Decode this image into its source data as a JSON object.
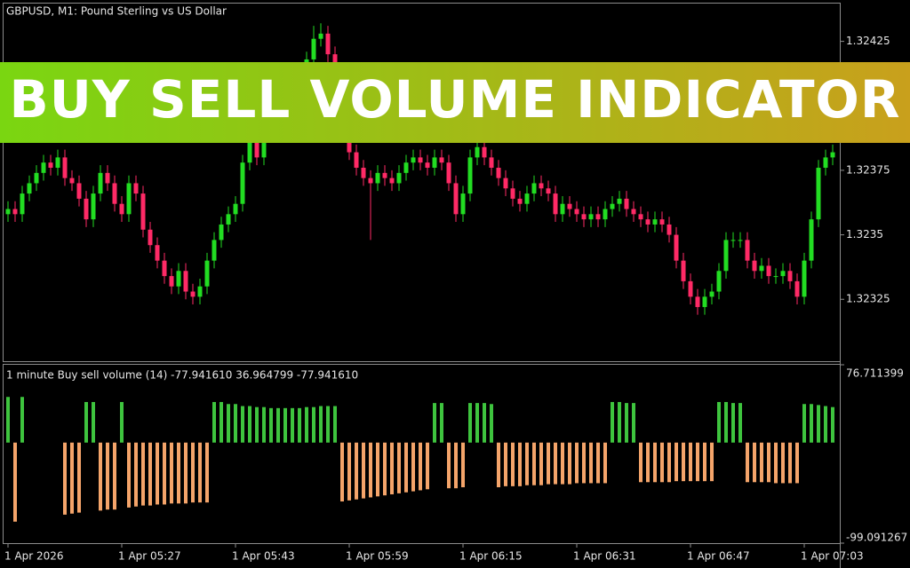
{
  "banner": {
    "text": "BUY SELL VOLUME INDICATOR"
  },
  "chart_data": [
    {
      "type": "candlestick",
      "title": "GBPUSD, M1:  Pound Sterling vs US Dollar",
      "up_color": "#22dd22",
      "down_color": "#ff2a66",
      "ylim": [
        1.32301,
        1.3244
      ],
      "yticks": [
        1.32325,
        1.3235,
        1.32375,
        1.32425
      ],
      "categories": [
        "1 Apr 2026",
        null,
        null,
        null,
        null,
        null,
        null,
        null,
        null,
        null,
        null,
        null,
        null,
        null,
        null,
        null,
        "1 Apr 05:27",
        null,
        null,
        null,
        null,
        null,
        null,
        null,
        null,
        null,
        null,
        null,
        null,
        null,
        null,
        null,
        "1 Apr 05:43",
        null,
        null,
        null,
        null,
        null,
        null,
        null,
        null,
        null,
        null,
        null,
        null,
        null,
        null,
        null,
        "1 Apr 05:59",
        null,
        null,
        null,
        null,
        null,
        null,
        null,
        null,
        null,
        null,
        null,
        null,
        null,
        null,
        null,
        "1 Apr 06:15",
        null,
        null,
        null,
        null,
        null,
        null,
        null,
        null,
        null,
        null,
        null,
        null,
        null,
        null,
        null,
        "1 Apr 06:31",
        null,
        null,
        null,
        null,
        null,
        null,
        null,
        null,
        null,
        null,
        null,
        null,
        null,
        null,
        null,
        "1 Apr 06:47",
        null,
        null,
        null,
        null,
        null,
        null,
        null,
        null,
        null,
        null,
        null,
        null,
        null,
        null,
        null,
        "1 Apr 07:03",
        null,
        null,
        null,
        null
      ],
      "open": [
        1.32358,
        1.3236,
        1.32358,
        1.32366,
        1.3237,
        1.32374,
        1.32378,
        1.32376,
        1.3238,
        1.32372,
        1.3237,
        1.32364,
        1.32356,
        1.32366,
        1.32374,
        1.3237,
        1.32362,
        1.32358,
        1.3237,
        1.32366,
        1.32352,
        1.32346,
        1.3234,
        1.32334,
        1.3233,
        1.32336,
        1.32328,
        1.32326,
        1.3233,
        1.3234,
        1.32348,
        1.32354,
        1.32358,
        1.32362,
        1.32378,
        1.32386,
        1.3238,
        1.3239,
        1.32396,
        1.324,
        1.32404,
        1.32408,
        1.32412,
        1.32418,
        1.32426,
        1.32428,
        1.3242,
        1.32412,
        1.324,
        1.32382,
        1.32376,
        1.32372,
        1.3237,
        1.32374,
        1.32372,
        1.3237,
        1.32374,
        1.32378,
        1.3238,
        1.32378,
        1.32376,
        1.3238,
        1.32378,
        1.3237,
        1.32358,
        1.32366,
        1.3238,
        1.32384,
        1.3238,
        1.32376,
        1.32372,
        1.32368,
        1.32364,
        1.32362,
        1.32366,
        1.3237,
        1.32368,
        1.32366,
        1.32358,
        1.32362,
        1.3236,
        1.32358,
        1.32356,
        1.32358,
        1.32356,
        1.3236,
        1.32362,
        1.32364,
        1.3236,
        1.32358,
        1.32356,
        1.32354,
        1.32356,
        1.32354,
        1.3235,
        1.3234,
        1.32332,
        1.32326,
        1.32322,
        1.32326,
        1.32328,
        1.32336,
        1.32348,
        1.32348,
        1.32348,
        1.3234,
        1.32336,
        1.32338,
        1.32334,
        1.32334,
        1.32336,
        1.32332,
        1.32326,
        1.3234,
        1.32356,
        1.32376,
        1.3238
      ],
      "high": [
        1.32363,
        1.32363,
        1.32369,
        1.32373,
        1.32377,
        1.32381,
        1.32381,
        1.32383,
        1.32383,
        1.32375,
        1.32373,
        1.32367,
        1.32369,
        1.32377,
        1.32377,
        1.32373,
        1.32365,
        1.32373,
        1.32373,
        1.32369,
        1.32355,
        1.32349,
        1.32343,
        1.32337,
        1.32339,
        1.32339,
        1.32331,
        1.32333,
        1.32343,
        1.32351,
        1.32357,
        1.32361,
        1.32365,
        1.32381,
        1.32389,
        1.32389,
        1.32393,
        1.32399,
        1.32403,
        1.32407,
        1.32411,
        1.32415,
        1.32421,
        1.32431,
        1.32432,
        1.32431,
        1.32423,
        1.32415,
        1.32403,
        1.32385,
        1.32379,
        1.32375,
        1.32377,
        1.32377,
        1.32375,
        1.32377,
        1.32381,
        1.32383,
        1.32383,
        1.32381,
        1.32383,
        1.32383,
        1.32381,
        1.32373,
        1.32369,
        1.32383,
        1.32387,
        1.32387,
        1.32383,
        1.32379,
        1.32375,
        1.32371,
        1.32367,
        1.32369,
        1.32373,
        1.32373,
        1.32371,
        1.32369,
        1.32365,
        1.32365,
        1.32363,
        1.32361,
        1.32361,
        1.32361,
        1.32363,
        1.32365,
        1.32367,
        1.32367,
        1.32363,
        1.32361,
        1.32359,
        1.32359,
        1.32359,
        1.32357,
        1.32353,
        1.32343,
        1.32335,
        1.32329,
        1.32329,
        1.32331,
        1.32339,
        1.32351,
        1.32351,
        1.32351,
        1.32351,
        1.32343,
        1.32341,
        1.32341,
        1.32337,
        1.32339,
        1.32339,
        1.32335,
        1.32343,
        1.32359,
        1.32379,
        1.32383,
        1.32385
      ],
      "low": [
        1.32355,
        1.32355,
        1.32355,
        1.32363,
        1.32367,
        1.32371,
        1.32373,
        1.32373,
        1.32369,
        1.32367,
        1.32361,
        1.32353,
        1.32353,
        1.32363,
        1.32367,
        1.32359,
        1.32355,
        1.32355,
        1.32363,
        1.32349,
        1.32343,
        1.32337,
        1.32331,
        1.32327,
        1.32327,
        1.32325,
        1.32323,
        1.32323,
        1.32327,
        1.32337,
        1.32345,
        1.32351,
        1.32355,
        1.32359,
        1.32375,
        1.32377,
        1.32377,
        1.32387,
        1.32393,
        1.32397,
        1.32401,
        1.32405,
        1.32409,
        1.32415,
        1.32423,
        1.32417,
        1.32409,
        1.32397,
        1.32379,
        1.32373,
        1.32369,
        1.32348,
        1.32367,
        1.32369,
        1.32367,
        1.32367,
        1.32371,
        1.32375,
        1.32375,
        1.32373,
        1.32373,
        1.32375,
        1.32367,
        1.32355,
        1.32355,
        1.32363,
        1.32377,
        1.32377,
        1.32373,
        1.32369,
        1.32365,
        1.32361,
        1.32359,
        1.32359,
        1.32363,
        1.32365,
        1.32363,
        1.32355,
        1.32355,
        1.32357,
        1.32355,
        1.32353,
        1.32353,
        1.32353,
        1.32353,
        1.32357,
        1.32359,
        1.32357,
        1.32355,
        1.32353,
        1.32351,
        1.32351,
        1.32351,
        1.32347,
        1.32337,
        1.32329,
        1.32323,
        1.32319,
        1.32319,
        1.32323,
        1.32325,
        1.32333,
        1.32345,
        1.32345,
        1.32337,
        1.32333,
        1.32333,
        1.32331,
        1.32331,
        1.32331,
        1.32329,
        1.32323,
        1.32323,
        1.32337,
        1.32353,
        1.32373,
        1.32377
      ],
      "close": [
        1.3236,
        1.32358,
        1.32366,
        1.3237,
        1.32374,
        1.32378,
        1.32376,
        1.3238,
        1.32372,
        1.3237,
        1.32364,
        1.32356,
        1.32366,
        1.32374,
        1.3237,
        1.32362,
        1.32358,
        1.3237,
        1.32366,
        1.32352,
        1.32346,
        1.3234,
        1.32334,
        1.3233,
        1.32336,
        1.32328,
        1.32326,
        1.3233,
        1.3234,
        1.32348,
        1.32354,
        1.32358,
        1.32362,
        1.32378,
        1.32386,
        1.3238,
        1.3239,
        1.32396,
        1.324,
        1.32404,
        1.32408,
        1.32412,
        1.32418,
        1.32426,
        1.32428,
        1.3242,
        1.32412,
        1.324,
        1.32382,
        1.32376,
        1.32372,
        1.3237,
        1.32374,
        1.32372,
        1.3237,
        1.32374,
        1.32378,
        1.3238,
        1.32378,
        1.32376,
        1.3238,
        1.32378,
        1.3237,
        1.32358,
        1.32366,
        1.3238,
        1.32384,
        1.3238,
        1.32376,
        1.32372,
        1.32368,
        1.32364,
        1.32362,
        1.32366,
        1.3237,
        1.32368,
        1.32366,
        1.32358,
        1.32362,
        1.3236,
        1.32358,
        1.32356,
        1.32358,
        1.32356,
        1.3236,
        1.32362,
        1.32364,
        1.3236,
        1.32358,
        1.32356,
        1.32354,
        1.32356,
        1.32354,
        1.3235,
        1.3234,
        1.32332,
        1.32326,
        1.32322,
        1.32326,
        1.32328,
        1.32336,
        1.32348,
        1.32348,
        1.32348,
        1.3234,
        1.32336,
        1.32338,
        1.32334,
        1.32334,
        1.32336,
        1.32332,
        1.32326,
        1.3234,
        1.32356,
        1.32376,
        1.3238,
        1.32382
      ]
    },
    {
      "type": "bar",
      "title": "1 minute Buy sell volume (14) -77.941610 36.964799 -77.941610",
      "up_color": "#3ec43e",
      "down_color": "#f4a46a",
      "ylim": [
        -99.091267,
        76.711399
      ],
      "yticks": [
        -99.091267,
        76.711399
      ],
      "values": [
        45,
        -77.9,
        45,
        null,
        null,
        null,
        null,
        null,
        -71,
        -70,
        -69,
        40,
        40,
        -67,
        -66,
        -66,
        40,
        -64,
        -63,
        -62,
        -62,
        -61,
        -61,
        -60,
        -60,
        -60,
        -59,
        -59,
        -59,
        40,
        40,
        38,
        38,
        36,
        36,
        35,
        35,
        34,
        34,
        34,
        34,
        34,
        35,
        35,
        36,
        36,
        36,
        -58,
        -57,
        -56,
        -55,
        -54,
        -53,
        -52,
        -51,
        -50,
        -49,
        -48,
        -47,
        -46,
        39,
        39,
        -45,
        -45,
        -44,
        39,
        39,
        39,
        38,
        -44,
        -43,
        -43,
        -43,
        -42,
        -42,
        -42,
        -41,
        -41,
        -41,
        -41,
        -40,
        -40,
        -40,
        -40,
        -40,
        40,
        40,
        39,
        39,
        -39,
        -39,
        -39,
        -39,
        -39,
        -38,
        -38,
        -38,
        -38,
        -38,
        -38,
        40,
        40,
        39,
        39,
        -39,
        -39,
        -39,
        -39,
        -40,
        -40,
        -40,
        -40,
        38,
        38,
        37,
        36,
        35
      ]
    }
  ]
}
